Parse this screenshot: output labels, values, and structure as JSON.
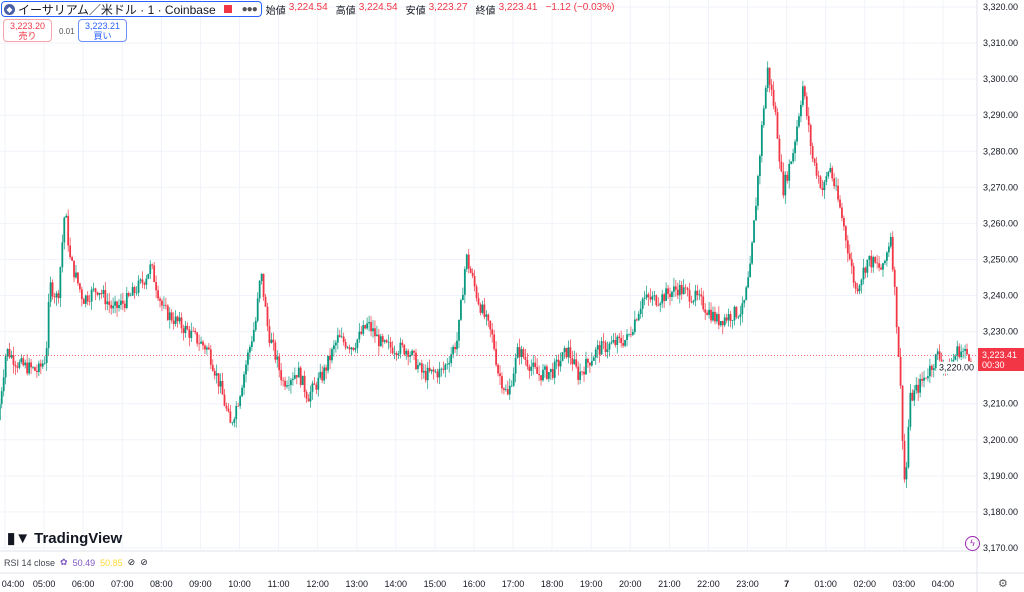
{
  "header": {
    "symbol": "イーサリアム／米ドル · 1 · Coinbase",
    "icon": "ethereum-icon",
    "open_label": "始値",
    "open": "3,224.54",
    "high_label": "高値",
    "high": "3,224.54",
    "low_label": "安値",
    "low": "3,223.27",
    "close_label": "終値",
    "close": "3,223.41",
    "change": "−1.12 (−0.03%)"
  },
  "trade": {
    "sell_price": "3,223.20",
    "sell_label": "売り",
    "spread": "0.01",
    "buy_price": "3,223.21",
    "buy_label": "買い"
  },
  "logo": "TradingView",
  "rsi": {
    "label": "RSI 14 close",
    "value1": "50.49",
    "value2": "50.85"
  },
  "last_price": {
    "price": "3,223.41",
    "countdown": "00:30"
  },
  "colors": {
    "up": "#089981",
    "down": "#f23645",
    "grid": "#f0f3fa",
    "rsi1": "#7e57c2",
    "rsi2": "#fdd835"
  },
  "chart_data": {
    "type": "candlestick",
    "title": "",
    "ylim": [
      3170,
      3320
    ],
    "grid": true,
    "yticks": [
      "3,320.00",
      "3,310.00",
      "3,300.00",
      "3,290.00",
      "3,280.00",
      "3,270.00",
      "3,260.00",
      "3,250.00",
      "3,240.00",
      "3,230.00",
      "3,220.00",
      "3,210.00",
      "3,200.00",
      "3,190.00",
      "3,180.00",
      "3,170.00"
    ],
    "xticks": [
      "04:00",
      "05:00",
      "06:00",
      "07:00",
      "08:00",
      "09:00",
      "10:00",
      "11:00",
      "12:00",
      "13:00",
      "14:00",
      "15:00",
      "16:00",
      "17:00",
      "18:00",
      "19:00",
      "20:00",
      "21:00",
      "22:00",
      "23:00",
      "7",
      "01:00",
      "02:00",
      "03:00",
      "04:00"
    ],
    "price_path": [
      [
        "03:52",
        3205.5
      ],
      [
        "04:05",
        3225
      ],
      [
        "04:23",
        3221
      ],
      [
        "04:54",
        3219
      ],
      [
        "05:06",
        3223
      ],
      [
        "05:12",
        3243
      ],
      [
        "05:24",
        3239
      ],
      [
        "05:35",
        3264
      ],
      [
        "05:43",
        3250
      ],
      [
        "06:03",
        3239
      ],
      [
        "06:26",
        3242
      ],
      [
        "06:49",
        3236
      ],
      [
        "07:12",
        3239
      ],
      [
        "07:35",
        3244
      ],
      [
        "07:47",
        3248
      ],
      [
        "08:06",
        3236
      ],
      [
        "08:44",
        3230
      ],
      [
        "09:15",
        3225
      ],
      [
        "09:33",
        3215
      ],
      [
        "09:49",
        3204
      ],
      [
        "10:01",
        3211
      ],
      [
        "10:16",
        3223.5
      ],
      [
        "10:28",
        3233
      ],
      [
        "10:36",
        3246.5
      ],
      [
        "10:47",
        3230
      ],
      [
        "11:10",
        3216
      ],
      [
        "11:33",
        3219
      ],
      [
        "11:48",
        3212
      ],
      [
        "12:11",
        3218
      ],
      [
        "12:34",
        3228
      ],
      [
        "12:57",
        3226
      ],
      [
        "13:20",
        3232
      ],
      [
        "13:43",
        3226
      ],
      [
        "14:22",
        3225
      ],
      [
        "14:45",
        3218
      ],
      [
        "15:15",
        3219
      ],
      [
        "15:38",
        3228
      ],
      [
        "15:51",
        3251
      ],
      [
        "16:09",
        3239
      ],
      [
        "16:32",
        3228
      ],
      [
        "16:40",
        3219
      ],
      [
        "16:55",
        3212
      ],
      [
        "17:11",
        3225
      ],
      [
        "17:41",
        3218
      ],
      [
        "18:04",
        3219
      ],
      [
        "18:27",
        3225
      ],
      [
        "18:43",
        3218
      ],
      [
        "19:13",
        3225
      ],
      [
        "19:59",
        3228
      ],
      [
        "20:22",
        3239
      ],
      [
        "20:45",
        3239
      ],
      [
        "21:16",
        3242
      ],
      [
        "21:47",
        3239
      ],
      [
        "22:17",
        3233
      ],
      [
        "22:56",
        3236
      ],
      [
        "23:07",
        3247
      ],
      [
        "23:16",
        3266
      ],
      [
        "23:27",
        3291
      ],
      [
        "23:34",
        3302.5
      ],
      [
        "23:47",
        3289
      ],
      [
        "23:57",
        3269
      ],
      [
        "00:13",
        3280
      ],
      [
        "00:28",
        3298
      ],
      [
        "00:43",
        3278
      ],
      [
        "00:59",
        3269
      ],
      [
        "01:09",
        3276
      ],
      [
        "01:29",
        3261
      ],
      [
        "01:49",
        3241.5
      ],
      [
        "02:08",
        3250
      ],
      [
        "02:31",
        3247
      ],
      [
        "02:43",
        3257
      ],
      [
        "02:51",
        3236
      ],
      [
        "02:57",
        3218
      ],
      [
        "03:05",
        3185
      ],
      [
        "03:12",
        3211
      ],
      [
        "03:32",
        3216.5
      ],
      [
        "03:55",
        3223.5
      ],
      [
        "04:11",
        3219
      ],
      [
        "04:26",
        3225
      ],
      [
        "04:44",
        3223.4
      ]
    ]
  }
}
